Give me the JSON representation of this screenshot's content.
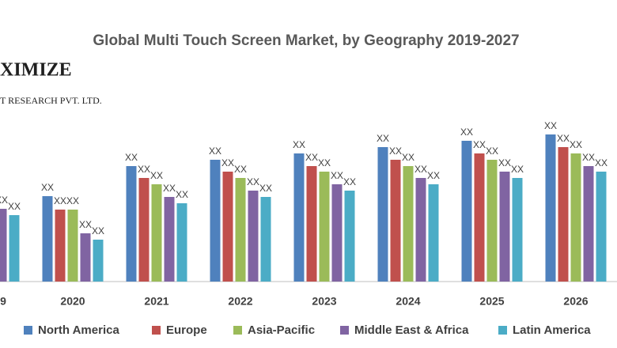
{
  "chart_data": {
    "type": "bar",
    "title": "Global Multi Touch Screen Market, by Geography 2019-2027",
    "logo": [
      "XIMIZE",
      "T RESEARCH PVT. LTD."
    ],
    "categories": [
      "9",
      "2020",
      "2021",
      "2022",
      "2023",
      "2024",
      "2025",
      "2026"
    ],
    "series": [
      {
        "name": "North America",
        "color": "#4f81bd",
        "values": [
          null,
          108,
          146,
          154,
          162,
          170,
          178,
          186
        ],
        "value_labels": [
          null,
          "XX",
          "XX",
          "XX",
          "XX",
          "XX",
          "XX",
          "XX"
        ]
      },
      {
        "name": "Europe",
        "color": "#c0504d",
        "values": [
          null,
          91,
          131,
          139,
          146,
          154,
          162,
          170
        ],
        "value_labels": [
          null,
          "XX",
          "XX",
          "XX",
          "XX",
          "XX",
          "XX",
          "XX"
        ]
      },
      {
        "name": "Asia-Pacific",
        "color": "#9bbb59",
        "values": [
          null,
          91,
          123,
          131,
          139,
          146,
          154,
          162
        ],
        "value_labels": [
          null,
          "XX",
          "XX",
          "XX",
          "XX",
          "XX",
          "XX",
          "XX"
        ]
      },
      {
        "name": "Middle East & Africa",
        "color": "#8064a2",
        "values": [
          92,
          61,
          107,
          115,
          123,
          131,
          139,
          146
        ],
        "value_labels": [
          "XX",
          "XX",
          "XX",
          "XX",
          "XX",
          "XX",
          "XX",
          "XX"
        ]
      },
      {
        "name": "Latin America",
        "color": "#4bacc6",
        "values": [
          84,
          53,
          99,
          107,
          115,
          123,
          131,
          139
        ],
        "value_labels": [
          "XX",
          "XX",
          "XX",
          "XX",
          "XX",
          "XX",
          "XX",
          "XX"
        ]
      }
    ],
    "ylim": [
      0,
      200
    ]
  }
}
